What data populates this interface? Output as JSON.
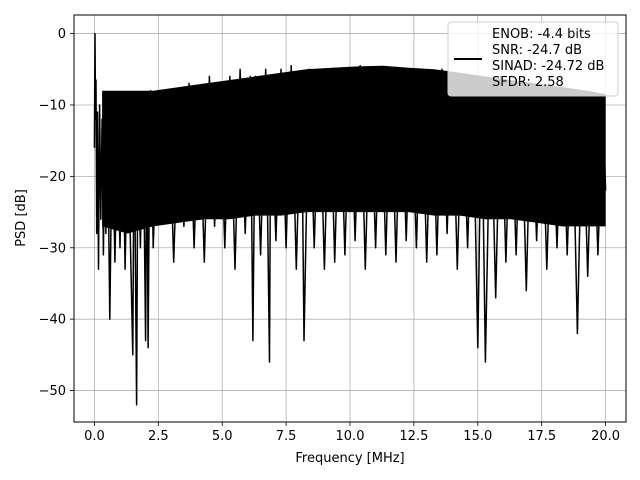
{
  "chart_data": {
    "type": "line",
    "xlabel": "Frequency [MHz]",
    "ylabel": "PSD [dB]",
    "xlim": [
      -0.8,
      20.8
    ],
    "ylim": [
      -54.4,
      2.6
    ],
    "xticks": [
      0.0,
      2.5,
      5.0,
      7.5,
      10.0,
      12.5,
      15.0,
      17.5,
      20.0
    ],
    "xtick_labels": [
      "0.0",
      "2.5",
      "5.0",
      "7.5",
      "10.0",
      "12.5",
      "15.0",
      "17.5",
      "20.0"
    ],
    "yticks": [
      0,
      -10,
      -20,
      -30,
      -40,
      -50
    ],
    "ytick_labels": [
      "0",
      "−10",
      "−20",
      "−30",
      "−40",
      "−50"
    ],
    "grid": true,
    "legend_position": "top-right",
    "line_color": "#000000",
    "series": [
      {
        "name": "ENOB: -4.4 bits\nSNR: -24.7 dB\nSINAD: -24.72 dB\nSFDR: 2.58",
        "x": [
          0.0,
          0.02,
          0.04,
          0.06,
          0.09,
          0.12,
          0.16,
          0.2,
          0.25,
          0.3,
          0.35,
          0.4,
          0.45,
          0.5,
          0.55,
          0.6,
          0.7,
          0.8,
          0.9,
          1.0,
          1.1,
          1.2,
          1.3,
          1.4,
          1.5,
          1.55,
          1.6,
          1.65,
          1.7,
          1.8,
          1.9,
          2.0,
          2.05,
          2.1,
          2.15,
          2.2,
          2.3,
          2.5,
          2.7,
          2.9,
          3.1,
          3.3,
          3.5,
          3.7,
          3.9,
          4.1,
          4.3,
          4.5,
          4.7,
          4.9,
          5.1,
          5.3,
          5.5,
          5.7,
          5.9,
          6.1,
          6.2,
          6.3,
          6.5,
          6.7,
          6.85,
          6.9,
          7.1,
          7.3,
          7.5,
          7.7,
          7.9,
          8.1,
          8.2,
          8.4,
          8.6,
          8.8,
          9.0,
          9.2,
          9.4,
          9.6,
          9.8,
          10.0,
          10.2,
          10.4,
          10.6,
          10.8,
          11.0,
          11.2,
          11.4,
          11.6,
          11.8,
          12.0,
          12.2,
          12.4,
          12.6,
          12.8,
          13.0,
          13.2,
          13.4,
          13.6,
          13.8,
          14.0,
          14.2,
          14.4,
          14.6,
          14.8,
          15.0,
          15.15,
          15.3,
          15.5,
          15.7,
          15.9,
          16.1,
          16.3,
          16.5,
          16.7,
          16.9,
          17.1,
          17.3,
          17.5,
          17.7,
          17.9,
          18.1,
          18.3,
          18.5,
          18.7,
          18.9,
          19.1,
          19.3,
          19.5,
          19.7,
          19.9,
          20.0
        ],
        "values": [
          -16.0,
          0.0,
          -12.0,
          -6.5,
          -28.0,
          -11.0,
          -33.0,
          -10.0,
          -26.0,
          -12.0,
          -31.0,
          -14.0,
          -28.0,
          -11.0,
          -24.0,
          -40.0,
          -12.0,
          -32.0,
          -14.0,
          -30.0,
          -11.0,
          -33.0,
          -13.0,
          -28.0,
          -45.0,
          -12.0,
          -30.0,
          -52.0,
          -14.0,
          -30.0,
          -10.0,
          -43.0,
          -12.0,
          -44.0,
          -20.0,
          -8.0,
          -30.0,
          -9.0,
          -26.0,
          -8.0,
          -32.0,
          -9.0,
          -27.0,
          -7.0,
          -30.0,
          -8.0,
          -32.0,
          -6.0,
          -27.0,
          -7.0,
          -30.0,
          -6.0,
          -33.0,
          -5.0,
          -28.0,
          -6.0,
          -43.0,
          -6.0,
          -31.0,
          -5.0,
          -46.0,
          -7.0,
          -29.0,
          -5.0,
          -30.0,
          -4.5,
          -33.0,
          -6.0,
          -43.0,
          -5.0,
          -30.0,
          -6.0,
          -33.0,
          -5.0,
          -32.0,
          -6.0,
          -31.0,
          -5.0,
          -29.0,
          -4.5,
          -33.0,
          -6.0,
          -30.0,
          -5.0,
          -31.0,
          -6.0,
          -32.0,
          -5.0,
          -29.0,
          -6.0,
          -30.0,
          -5.0,
          -32.0,
          -6.0,
          -31.0,
          -5.0,
          -28.0,
          -6.0,
          -33.0,
          -7.0,
          -30.0,
          -6.0,
          -44.0,
          -8.0,
          -46.0,
          -7.0,
          -37.0,
          -6.0,
          -32.0,
          -7.0,
          -31.0,
          -8.0,
          -36.0,
          -7.0,
          -29.0,
          -8.0,
          -33.0,
          -9.0,
          -30.0,
          -8.0,
          -31.0,
          -9.0,
          -42.0,
          -8.0,
          -34.0,
          -9.0,
          -31.0,
          -10.0,
          -22.0
        ],
        "band_upper": [
          -8.0,
          -8.0,
          -8.0,
          -7.5,
          -7.0,
          -6.5,
          -6.0,
          -5.5,
          -5.0,
          -4.8,
          -4.6,
          -4.5,
          -4.8,
          -5.0,
          -5.5,
          -6.0,
          -6.5,
          -7.0,
          -7.5,
          -8.0,
          -8.5
        ],
        "band_lower": [
          -27.0,
          -28.0,
          -27.0,
          -26.5,
          -26.0,
          -26.0,
          -25.5,
          -25.5,
          -25.0,
          -25.0,
          -25.0,
          -25.0,
          -25.0,
          -25.5,
          -25.5,
          -26.0,
          -26.0,
          -26.5,
          -27.0,
          -27.0,
          -27.0
        ],
        "band_x": [
          0.3,
          1.3,
          2.3,
          3.3,
          4.3,
          5.3,
          6.3,
          7.3,
          8.3,
          9.3,
          10.3,
          11.3,
          12.3,
          13.3,
          14.3,
          15.3,
          16.3,
          17.3,
          18.3,
          19.3,
          20.0
        ]
      }
    ]
  }
}
